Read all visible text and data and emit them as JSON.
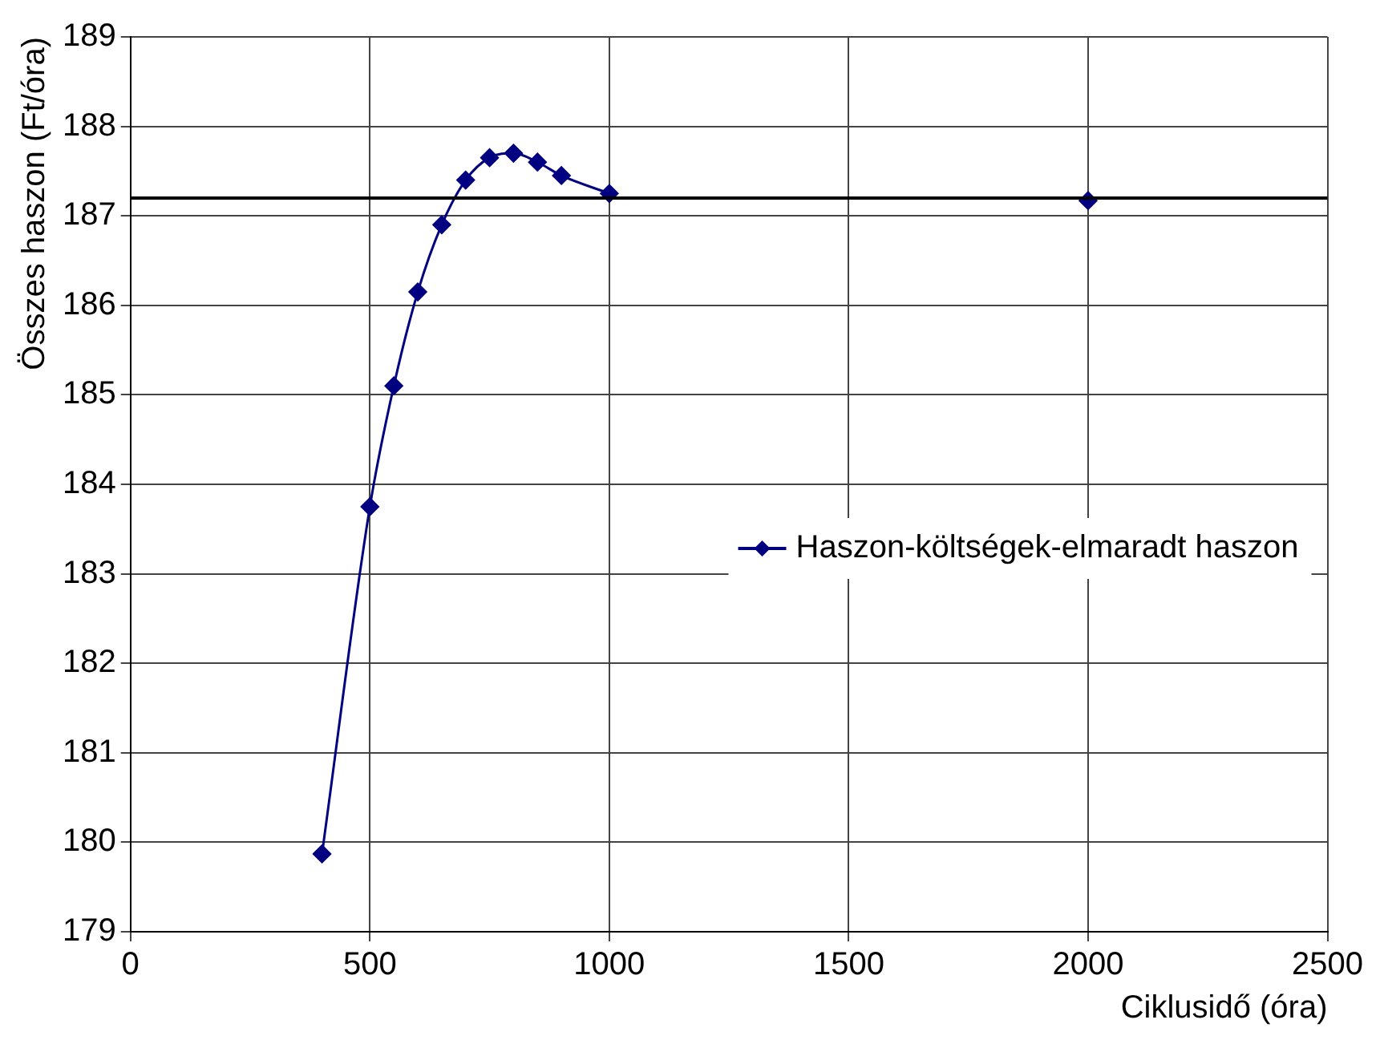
{
  "chart_data": {
    "type": "line",
    "xlabel": "Ciklusidő (óra)",
    "ylabel": "Összes haszon (Ft/óra)",
    "xlim": [
      0,
      2500
    ],
    "xticks": [
      0,
      500,
      1000,
      1500,
      2000,
      2500
    ],
    "ylim": [
      179,
      189
    ],
    "yticks": [
      179,
      180,
      181,
      182,
      183,
      184,
      185,
      186,
      187,
      188,
      189
    ],
    "grid": true,
    "legend": "right",
    "marker": "diamond",
    "line_style": "solid",
    "series": [
      {
        "name": "Haszon-költségek-elmaradt haszon",
        "color": "#000080",
        "x": [
          400,
          500,
          550,
          600,
          650,
          700,
          750,
          800,
          850,
          900,
          1000
        ],
        "values": [
          179.87,
          183.75,
          185.1,
          186.15,
          186.9,
          187.4,
          187.65,
          187.7,
          187.6,
          187.45,
          187.25
        ]
      },
      {
        "type": "scatter",
        "color": "#000080",
        "x": [
          2000
        ],
        "values": [
          187.17
        ]
      }
    ],
    "ref_lines": [
      {
        "axis": "y",
        "value": 187.2,
        "color": "#000000"
      }
    ]
  }
}
